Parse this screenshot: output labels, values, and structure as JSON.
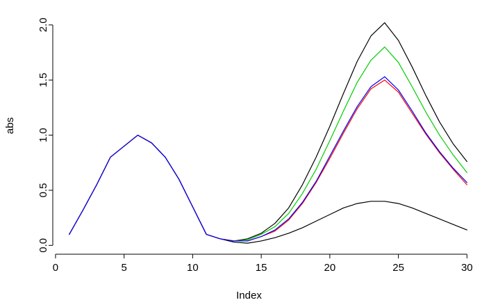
{
  "chart_data": {
    "type": "line",
    "title": "",
    "xlabel": "Index",
    "ylabel": "abs",
    "grid": false,
    "legend_position": "none",
    "xlim": [
      -0.2,
      31.2
    ],
    "ylim": [
      -0.08,
      2.1
    ],
    "xticks": [
      0,
      5,
      10,
      15,
      20,
      25,
      30
    ],
    "yticks": [
      0.0,
      0.5,
      1.0,
      1.5,
      2.0
    ],
    "x": [
      1,
      2,
      3,
      4,
      5,
      6,
      7,
      8,
      9,
      10,
      11,
      12,
      13,
      14,
      15,
      16,
      17,
      18,
      19,
      20,
      21,
      22,
      23,
      24,
      25,
      26,
      27,
      28,
      29,
      30
    ],
    "series": [
      {
        "name": "series-black-upper",
        "color": "#000000",
        "values": [
          0.1,
          0.32,
          0.55,
          0.8,
          0.9,
          1.0,
          0.93,
          0.8,
          0.6,
          0.35,
          0.1,
          0.06,
          0.04,
          0.06,
          0.11,
          0.2,
          0.34,
          0.55,
          0.8,
          1.08,
          1.38,
          1.67,
          1.9,
          2.02,
          1.86,
          1.62,
          1.36,
          1.12,
          0.92,
          0.76
        ]
      },
      {
        "name": "series-black-lower",
        "color": "#000000",
        "values": [
          0.1,
          0.32,
          0.55,
          0.8,
          0.9,
          1.0,
          0.93,
          0.8,
          0.6,
          0.35,
          0.1,
          0.06,
          0.03,
          0.02,
          0.04,
          0.07,
          0.11,
          0.16,
          0.22,
          0.28,
          0.34,
          0.38,
          0.4,
          0.4,
          0.38,
          0.34,
          0.29,
          0.24,
          0.19,
          0.14
        ]
      },
      {
        "name": "series-green",
        "color": "#00CD00",
        "values": [
          0.1,
          0.32,
          0.55,
          0.8,
          0.9,
          1.0,
          0.93,
          0.8,
          0.6,
          0.35,
          0.1,
          0.06,
          0.04,
          0.05,
          0.1,
          0.17,
          0.29,
          0.47,
          0.69,
          0.95,
          1.22,
          1.48,
          1.68,
          1.8,
          1.66,
          1.44,
          1.21,
          1.0,
          0.82,
          0.66
        ]
      },
      {
        "name": "series-red",
        "color": "#FF0000",
        "values": [
          0.1,
          0.32,
          0.55,
          0.8,
          0.9,
          1.0,
          0.93,
          0.8,
          0.6,
          0.35,
          0.1,
          0.06,
          0.04,
          0.04,
          0.08,
          0.13,
          0.23,
          0.38,
          0.57,
          0.79,
          1.02,
          1.24,
          1.42,
          1.5,
          1.39,
          1.2,
          1.01,
          0.84,
          0.69,
          0.55
        ]
      },
      {
        "name": "series-blue",
        "color": "#0000FF",
        "values": [
          0.1,
          0.32,
          0.55,
          0.8,
          0.9,
          1.0,
          0.93,
          0.8,
          0.6,
          0.35,
          0.1,
          0.06,
          0.04,
          0.04,
          0.08,
          0.14,
          0.24,
          0.39,
          0.58,
          0.81,
          1.04,
          1.26,
          1.44,
          1.53,
          1.41,
          1.22,
          1.02,
          0.85,
          0.7,
          0.57
        ]
      }
    ],
    "axis_color": "#000000",
    "tick_font_size": 15
  }
}
